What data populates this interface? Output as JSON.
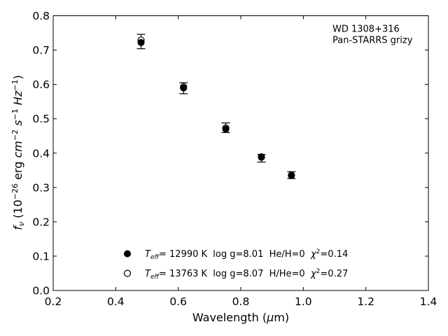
{
  "chart_data": {
    "type": "scatter",
    "annotation_lines": [
      "WD 1308+316",
      "Pan-STARRS grizy"
    ],
    "xlabel_parts": [
      "Wavelength (",
      "μ",
      "m)"
    ],
    "ylabel_parts": {
      "f": "f",
      "nu": "ν",
      "open": " (10",
      "exp_neg26": "−26",
      "erg": " erg ",
      "cm": "cm",
      "exp_neg2": "−2",
      "s": "s",
      "exp_neg1a": "−1",
      "hz": "Hz",
      "exp_neg1b": "−1",
      "close": ")"
    },
    "xlim": [
      0.2,
      1.4
    ],
    "ylim": [
      0.0,
      0.8
    ],
    "x_ticks": [
      0.2,
      0.4,
      0.6,
      0.8,
      1.0,
      1.2,
      1.4
    ],
    "y_ticks": [
      0.0,
      0.1,
      0.2,
      0.3,
      0.4,
      0.5,
      0.6,
      0.7,
      0.8
    ],
    "x_tick_labels": [
      "0.2",
      "0.4",
      "0.6",
      "0.8",
      "1.0",
      "1.2",
      "1.4"
    ],
    "y_tick_labels": [
      "0.0",
      "0.1",
      "0.2",
      "0.3",
      "0.4",
      "0.5",
      "0.6",
      "0.7",
      "0.8"
    ],
    "observed": {
      "x": [
        0.481,
        0.617,
        0.752,
        0.866,
        0.962
      ],
      "y": [
        0.725,
        0.589,
        0.474,
        0.385,
        0.336
      ],
      "err": [
        0.021,
        0.016,
        0.014,
        0.011,
        0.01
      ]
    },
    "series": [
      {
        "marker": "filled",
        "legend_parts": {
          "T": "T",
          "sub": "eff",
          "values": "= 12990 K  log g=8.01  He/H=0  ",
          "chi": "χ",
          "sup": "2",
          "stat": "=0.14"
        },
        "x": [
          0.481,
          0.617,
          0.752,
          0.866,
          0.962
        ],
        "y": [
          0.722,
          0.59,
          0.47,
          0.388,
          0.336
        ]
      },
      {
        "marker": "open",
        "legend_parts": {
          "T": "T",
          "sub": "eff",
          "values": "= 13763 K  log g=8.07  H/He=0  ",
          "chi": "χ",
          "sup": "2",
          "stat": "=0.27"
        },
        "x": [
          0.481,
          0.617,
          0.752,
          0.866,
          0.962
        ],
        "y": [
          0.729,
          0.593,
          0.473,
          0.389,
          0.335
        ]
      }
    ],
    "grid": false,
    "legend_position": "lower-center",
    "annotation_position": "top-right",
    "colors": {
      "marker": "#000000",
      "axes": "#000000",
      "background": "#ffffff"
    }
  }
}
